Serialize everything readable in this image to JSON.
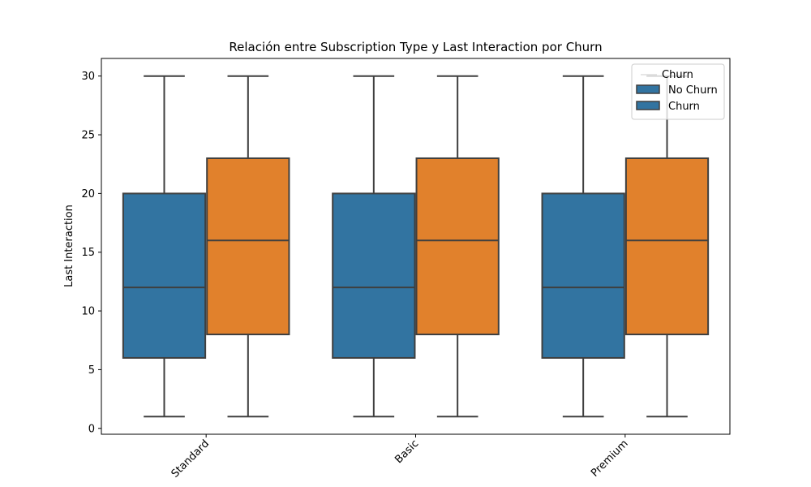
{
  "chart_data": {
    "type": "box",
    "title": "Relación entre Subscription Type y Last Interaction por Churn",
    "xlabel": "",
    "ylabel": "Last Interaction",
    "categories": [
      "Standard",
      "Basic",
      "Premium"
    ],
    "ylim": [
      -0.5,
      31.5
    ],
    "yticks": [
      0,
      5,
      10,
      15,
      20,
      25,
      30
    ],
    "grid": false,
    "legend": {
      "title": "Churn",
      "position": "top-right"
    },
    "series": [
      {
        "name": "No Churn",
        "color": "#3274a1",
        "boxes": [
          {
            "min": 1,
            "q1": 6,
            "median": 12,
            "q3": 20,
            "max": 30
          },
          {
            "min": 1,
            "q1": 6,
            "median": 12,
            "q3": 20,
            "max": 30
          },
          {
            "min": 1,
            "q1": 6,
            "median": 12,
            "q3": 20,
            "max": 30
          }
        ]
      },
      {
        "name": "Churn",
        "color": "#e1812c",
        "legend_color": "#3274a1",
        "boxes": [
          {
            "min": 1,
            "q1": 8,
            "median": 16,
            "q3": 23,
            "max": 30
          },
          {
            "min": 1,
            "q1": 8,
            "median": 16,
            "q3": 23,
            "max": 30
          },
          {
            "min": 1,
            "q1": 8,
            "median": 16,
            "q3": 23,
            "max": 30
          }
        ]
      }
    ],
    "edge_color": "#3f3f3f"
  }
}
